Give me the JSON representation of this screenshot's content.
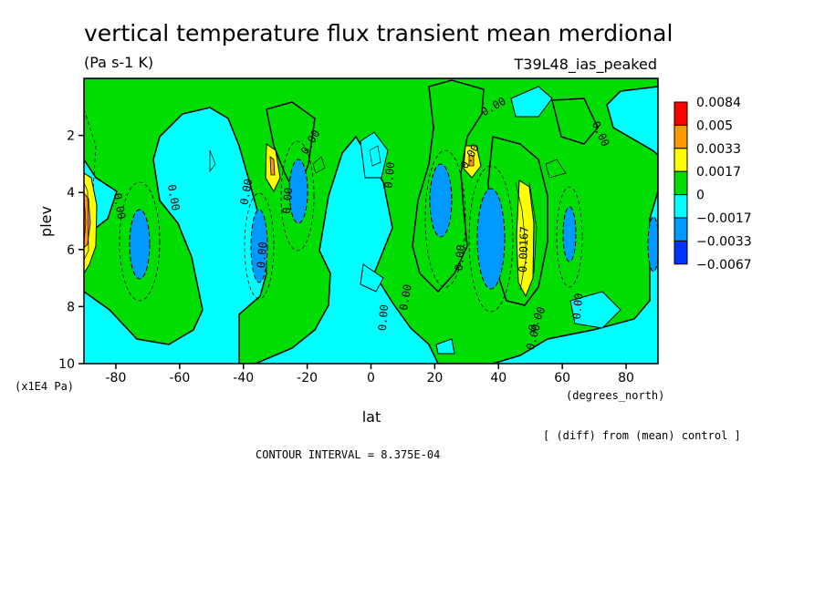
{
  "chart_data": {
    "type": "heatmap",
    "title": "vertical temperature flux transient mean merdional",
    "units": "(Pa s-1 K)",
    "experiment": "T39L48_ias_peaked",
    "xlabel": "lat",
    "x_units": "(degrees_north)",
    "ylabel": "plev",
    "y_units": "(x1E4 Pa)",
    "xlim": [
      -90,
      90
    ],
    "ylim": [
      10,
      0
    ],
    "x_ticks": [
      "-80",
      "-60",
      "-40",
      "-20",
      "0",
      "20",
      "40",
      "60",
      "80"
    ],
    "x_tick_values": [
      -80,
      -60,
      -40,
      -20,
      0,
      20,
      40,
      60,
      80
    ],
    "y_ticks": [
      "2",
      "4",
      "6",
      "8",
      "10"
    ],
    "y_tick_values": [
      2,
      4,
      6,
      8,
      10
    ],
    "contour_interval_label": "CONTOUR INTERVAL = 8.375E-04",
    "diff_label": "[ (diff) from (mean) control ]",
    "colorbar": {
      "levels": [
        "0.0084",
        "0.005",
        "0.0033",
        "0.0017",
        "0",
        "−0.0017",
        "−0.0033",
        "−0.0067"
      ],
      "colors": [
        "#ff0000",
        "#ff9900",
        "#ffff00",
        "#00dd00",
        "#00ffff",
        "#0099ff",
        "#0033ff"
      ]
    },
    "contour_labels": [
      {
        "text": "0.00",
        "lat": -80,
        "p": 4.5,
        "rot": 80
      },
      {
        "text": "0.00",
        "lat": -63,
        "p": 4.2,
        "rot": 80
      },
      {
        "text": "0.00",
        "lat": -38,
        "p": 4.0,
        "rot": -80
      },
      {
        "text": "0.00",
        "lat": -33,
        "p": 6.2,
        "rot": -85
      },
      {
        "text": "0.00",
        "lat": -25,
        "p": 4.3,
        "rot": -85
      },
      {
        "text": "0.00",
        "lat": -18,
        "p": 2.3,
        "rot": -60
      },
      {
        "text": "0.00",
        "lat": 7,
        "p": 3.4,
        "rot": -85
      },
      {
        "text": "0.00",
        "lat": 5,
        "p": 8.4,
        "rot": -85
      },
      {
        "text": "0.00",
        "lat": 12,
        "p": 7.7,
        "rot": -80
      },
      {
        "text": "0.00",
        "lat": 29,
        "p": 6.3,
        "rot": -85
      },
      {
        "text": "0.00",
        "lat": 32,
        "p": 2.8,
        "rot": -60
      },
      {
        "text": "0.00",
        "lat": 39,
        "p": 1.1,
        "rot": -30
      },
      {
        "text": "0.00167",
        "lat": 49,
        "p": 6.0,
        "rot": -88
      },
      {
        "text": "0.00",
        "lat": 53,
        "p": 8.5,
        "rot": -65
      },
      {
        "text": "0.00",
        "lat": 52,
        "p": 9.1,
        "rot": -75
      },
      {
        "text": "0.00",
        "lat": 71,
        "p": 2.0,
        "rot": 65
      },
      {
        "text": "0.00",
        "lat": 66,
        "p": 8.0,
        "rot": -85
      }
    ]
  }
}
